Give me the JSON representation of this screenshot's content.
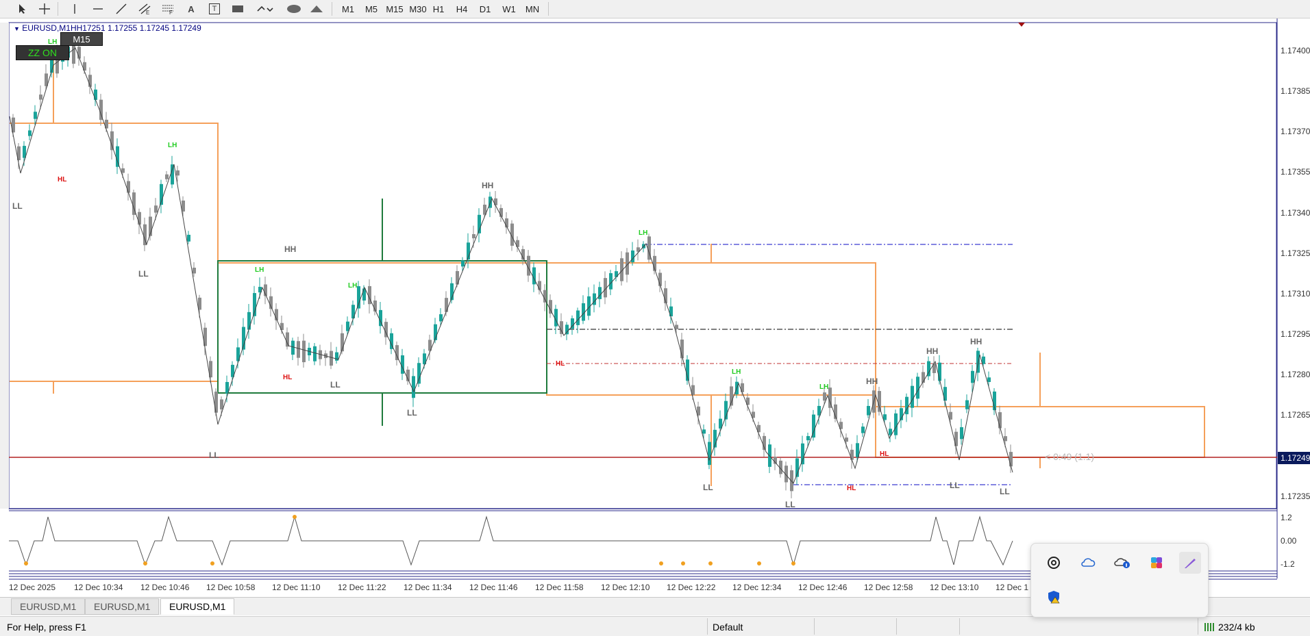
{
  "toolbar": {
    "tools": [
      "cursor-icon",
      "crosshair-icon",
      "vertical-line-icon",
      "horizontal-line-icon",
      "trendline-icon",
      "equidistant-channel-icon",
      "fibonacci-icon",
      "text-icon",
      "text-label-icon",
      "rectangle-icon",
      "arrows-icon",
      "ellipse-icon",
      "triangle-icon"
    ],
    "text_tool_label": "A",
    "label_tool_label": "T",
    "timeframes": [
      "M1",
      "M5",
      "M15",
      "M30",
      "H1",
      "H4",
      "D1",
      "W1",
      "MN"
    ]
  },
  "chart": {
    "symbol_line": "EURUSD,M1HH17251 1.17255 1.17245 1.17249",
    "tf_badge": "M15",
    "zz_button": "ZZ ON",
    "current_price": "1.17249",
    "timer_text": "< 0:49 (1.1)",
    "price_axis": [
      "1.17400",
      "1.17385",
      "1.17370",
      "1.17355",
      "1.17340",
      "1.17325",
      "1.17310",
      "1.17295",
      "1.17280",
      "1.17265",
      "1.17235"
    ],
    "indicator_axis": [
      "1.2",
      "0.00",
      "-1.2"
    ],
    "time_axis": [
      "12 Dec 2025",
      "12 Dec 10:34",
      "12 Dec 10:46",
      "12 Dec 10:58",
      "12 Dec 11:10",
      "12 Dec 11:22",
      "12 Dec 11:34",
      "12 Dec 11:46",
      "12 Dec 11:58",
      "12 Dec 12:10",
      "12 Dec 12:22",
      "12 Dec 12:34",
      "12 Dec 12:46",
      "12 Dec 12:58",
      "12 Dec 13:10",
      "12 Dec 1"
    ],
    "swing_labels": [
      {
        "text": "LH",
        "kind": "lh"
      },
      {
        "text": "HL",
        "kind": "hl"
      },
      {
        "text": "LL",
        "kind": "ll"
      },
      {
        "text": "LH",
        "kind": "lh"
      },
      {
        "text": "LL",
        "kind": "ll"
      },
      {
        "text": "HH",
        "kind": "hh"
      },
      {
        "text": "LH",
        "kind": "lh"
      },
      {
        "text": "LH",
        "kind": "lh"
      },
      {
        "text": "HL",
        "kind": "hl"
      },
      {
        "text": "LL",
        "kind": "ll"
      },
      {
        "text": "LL",
        "kind": "ll"
      },
      {
        "text": "LL",
        "kind": "ll"
      },
      {
        "text": "HH",
        "kind": "hh"
      },
      {
        "text": "LH",
        "kind": "lh"
      },
      {
        "text": "HL",
        "kind": "hl"
      },
      {
        "text": "LH",
        "kind": "lh"
      },
      {
        "text": "LL",
        "kind": "ll"
      },
      {
        "text": "LL",
        "kind": "ll"
      },
      {
        "text": "LH",
        "kind": "lh"
      },
      {
        "text": "HH",
        "kind": "hh"
      },
      {
        "text": "HL",
        "kind": "hl"
      },
      {
        "text": "HL",
        "kind": "hl"
      },
      {
        "text": "HH",
        "kind": "hh"
      },
      {
        "text": "HH",
        "kind": "hh"
      },
      {
        "text": "LL",
        "kind": "ll"
      },
      {
        "text": "LL",
        "kind": "ll"
      }
    ],
    "colors": {
      "bull": "#1aa39a",
      "bear": "#8c8c8c",
      "orange": "#f5a05a",
      "green": "#1e7a3c",
      "red_line": "#b22222",
      "blue_dash": "#3a3ad0",
      "lh": "#22cc22",
      "hl": "#dd1111",
      "hh": "#666666",
      "ll": "#666666"
    }
  },
  "tabs": [
    "EURUSD,M1",
    "EURUSD,M1",
    "EURUSD,M1"
  ],
  "active_tab": 2,
  "status": {
    "help": "For Help, press F1",
    "profile": "Default",
    "traffic": "232/4 kb"
  },
  "tray": {
    "icons": [
      "chatgpt-icon",
      "onedrive-icon",
      "onedrive-info-icon",
      "copilot-icon",
      "pen-icon",
      "defender-warning-icon"
    ]
  }
}
